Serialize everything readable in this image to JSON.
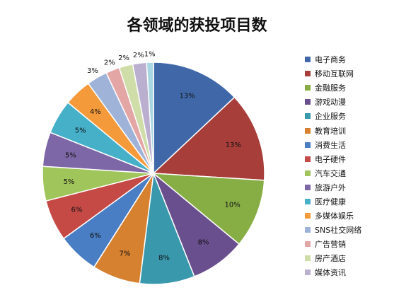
{
  "chart_data": {
    "type": "pie",
    "title": "各领域的获投项目数",
    "slices": [
      {
        "name": "电子商务",
        "value": 13,
        "label": "13%",
        "color": "#4068A8"
      },
      {
        "name": "移动互联网",
        "value": 13,
        "label": "13%",
        "color": "#A83E3A"
      },
      {
        "name": "金融服务",
        "value": 10,
        "label": "10%",
        "color": "#87AD45"
      },
      {
        "name": "游戏动漫",
        "value": 8,
        "label": "8%",
        "color": "#6A4F8E"
      },
      {
        "name": "企业服务",
        "value": 8,
        "label": "8%",
        "color": "#3A98AD"
      },
      {
        "name": "教育培训",
        "value": 7,
        "label": "7%",
        "color": "#D5812F"
      },
      {
        "name": "消费生活",
        "value": 6,
        "label": "6%",
        "color": "#4A7EC4"
      },
      {
        "name": "电子硬件",
        "value": 6,
        "label": "6%",
        "color": "#C54A46"
      },
      {
        "name": "汽车交通",
        "value": 5,
        "label": "5%",
        "color": "#A0C55A"
      },
      {
        "name": "旅游户外",
        "value": 5,
        "label": "5%",
        "color": "#7E67A6"
      },
      {
        "name": "医疗健康",
        "value": 5,
        "label": "5%",
        "color": "#46B0C9"
      },
      {
        "name": "多媒体娱乐",
        "value": 4,
        "label": "4%",
        "color": "#F59A3B"
      },
      {
        "name": "SNS社交网络",
        "value": 3,
        "label": "3%",
        "color": "#9FB3D8"
      },
      {
        "name": "广告营销",
        "value": 2,
        "label": "2%",
        "color": "#E3A6A5"
      },
      {
        "name": "房产酒店",
        "value": 2,
        "label": "2%",
        "color": "#CFDDA8"
      },
      {
        "name": "媒体资讯",
        "value": 2,
        "label": "2%",
        "color": "#BBAFCF"
      },
      {
        "name": "",
        "value": 1,
        "label": "1%",
        "color": "#A8D6E3"
      }
    ],
    "legend_position": "right"
  }
}
